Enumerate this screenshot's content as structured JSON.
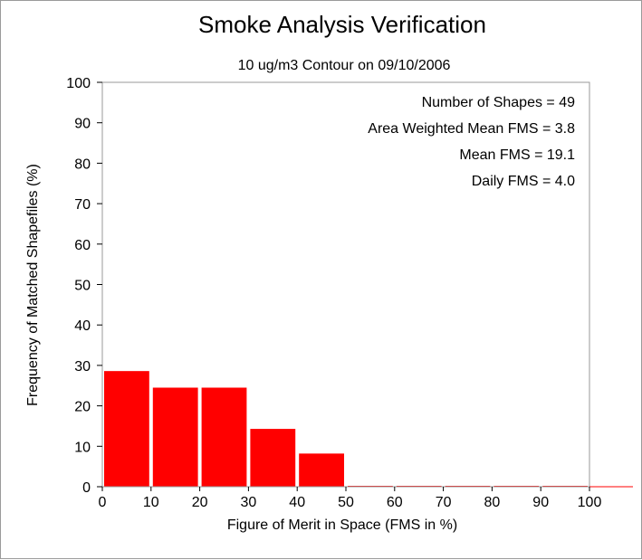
{
  "chart_data": {
    "type": "bar",
    "title": "Smoke Analysis Verification",
    "subtitle": "10 ug/m3 Contour on 09/10/2006",
    "xlabel": "Figure of Merit in Space (FMS in %)",
    "ylabel": "Frequency of Matched Shapefiles (%)",
    "xlim": [
      0,
      100
    ],
    "ylim": [
      0,
      100
    ],
    "x_ticks": [
      "0",
      "10",
      "20",
      "30",
      "40",
      "50",
      "60",
      "70",
      "80",
      "90",
      "100"
    ],
    "y_ticks": [
      "0",
      "10",
      "20",
      "30",
      "40",
      "50",
      "60",
      "70",
      "80",
      "90",
      "100"
    ],
    "bins": [
      {
        "start": 0,
        "end": 10,
        "value": 28.6
      },
      {
        "start": 10,
        "end": 20,
        "value": 24.5
      },
      {
        "start": 20,
        "end": 30,
        "value": 24.5
      },
      {
        "start": 30,
        "end": 40,
        "value": 14.3
      },
      {
        "start": 40,
        "end": 50,
        "value": 8.2
      },
      {
        "start": 50,
        "end": 60,
        "value": 0
      },
      {
        "start": 60,
        "end": 70,
        "value": 0
      },
      {
        "start": 70,
        "end": 80,
        "value": 0
      },
      {
        "start": 80,
        "end": 90,
        "value": 0
      },
      {
        "start": 90,
        "end": 100,
        "value": 0
      }
    ],
    "bar_color": "#ff0000",
    "grid": false,
    "annotations": [
      "Number of Shapes = 49",
      "Area Weighted Mean FMS = 3.8",
      "Mean FMS = 19.1",
      "Daily FMS = 4.0"
    ]
  }
}
